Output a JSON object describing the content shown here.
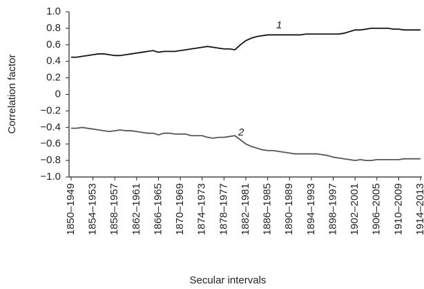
{
  "chart_data": {
    "type": "line",
    "xlabel": "Secular intervals",
    "ylabel": "Correlation factor",
    "categories": [
      "1850–1949",
      null,
      null,
      null,
      "1854–1953",
      null,
      null,
      null,
      "1858–1957",
      null,
      null,
      null,
      "1862–1961",
      null,
      null,
      null,
      "1866–1965",
      null,
      null,
      null,
      "1870–1969",
      null,
      null,
      null,
      "1874–1973",
      null,
      null,
      null,
      "1878–1977",
      null,
      null,
      null,
      "1882–1981",
      null,
      null,
      null,
      "1886–1985",
      null,
      null,
      null,
      "1890–1989",
      null,
      null,
      null,
      "1894–1993",
      null,
      null,
      null,
      "1898–1997",
      null,
      null,
      null,
      "1902–2001",
      null,
      null,
      null,
      "1906–2005",
      null,
      null,
      null,
      "1910–2009",
      null,
      null,
      null,
      "1914–2013"
    ],
    "series": [
      {
        "name": "1",
        "color": "#111111",
        "values": [
          0.45,
          0.45,
          0.46,
          0.47,
          0.48,
          0.49,
          0.49,
          0.48,
          0.47,
          0.47,
          0.48,
          0.49,
          0.5,
          0.51,
          0.52,
          0.53,
          0.51,
          0.52,
          0.52,
          0.52,
          0.53,
          0.54,
          0.55,
          0.56,
          0.57,
          0.58,
          0.57,
          0.56,
          0.55,
          0.55,
          0.54,
          0.6,
          0.65,
          0.68,
          0.7,
          0.71,
          0.72,
          0.72,
          0.72,
          0.72,
          0.72,
          0.72,
          0.72,
          0.73,
          0.73,
          0.73,
          0.73,
          0.73,
          0.73,
          0.73,
          0.74,
          0.76,
          0.78,
          0.78,
          0.79,
          0.8,
          0.8,
          0.8,
          0.8,
          0.79,
          0.79,
          0.78,
          0.78,
          0.78,
          0.78
        ]
      },
      {
        "name": "2",
        "color": "#555555",
        "values": [
          -0.41,
          -0.41,
          -0.4,
          -0.41,
          -0.42,
          -0.43,
          -0.44,
          -0.45,
          -0.44,
          -0.43,
          -0.44,
          -0.44,
          -0.45,
          -0.46,
          -0.47,
          -0.47,
          -0.49,
          -0.47,
          -0.47,
          -0.48,
          -0.48,
          -0.48,
          -0.5,
          -0.5,
          -0.5,
          -0.52,
          -0.53,
          -0.52,
          -0.52,
          -0.51,
          -0.5,
          -0.55,
          -0.6,
          -0.63,
          -0.65,
          -0.67,
          -0.68,
          -0.68,
          -0.69,
          -0.7,
          -0.71,
          -0.72,
          -0.72,
          -0.72,
          -0.72,
          -0.72,
          -0.73,
          -0.74,
          -0.76,
          -0.77,
          -0.78,
          -0.79,
          -0.8,
          -0.79,
          -0.8,
          -0.8,
          -0.79,
          -0.79,
          -0.79,
          -0.79,
          -0.79,
          -0.78,
          -0.78,
          -0.78,
          -0.78
        ]
      }
    ],
    "ylim": [
      -1,
      1
    ],
    "yticks": [
      {
        "value": 1,
        "label": "1.0"
      },
      0.8,
      0.6,
      0.4,
      0.2,
      0,
      {
        "value": -0.2,
        "label": "−0.2"
      },
      {
        "value": -0.4,
        "label": "−0.4"
      },
      {
        "value": -0.6,
        "label": "−0.6"
      },
      {
        "value": -0.8,
        "label": "−0.8"
      },
      {
        "value": -1,
        "label": "−1.0"
      }
    ]
  }
}
